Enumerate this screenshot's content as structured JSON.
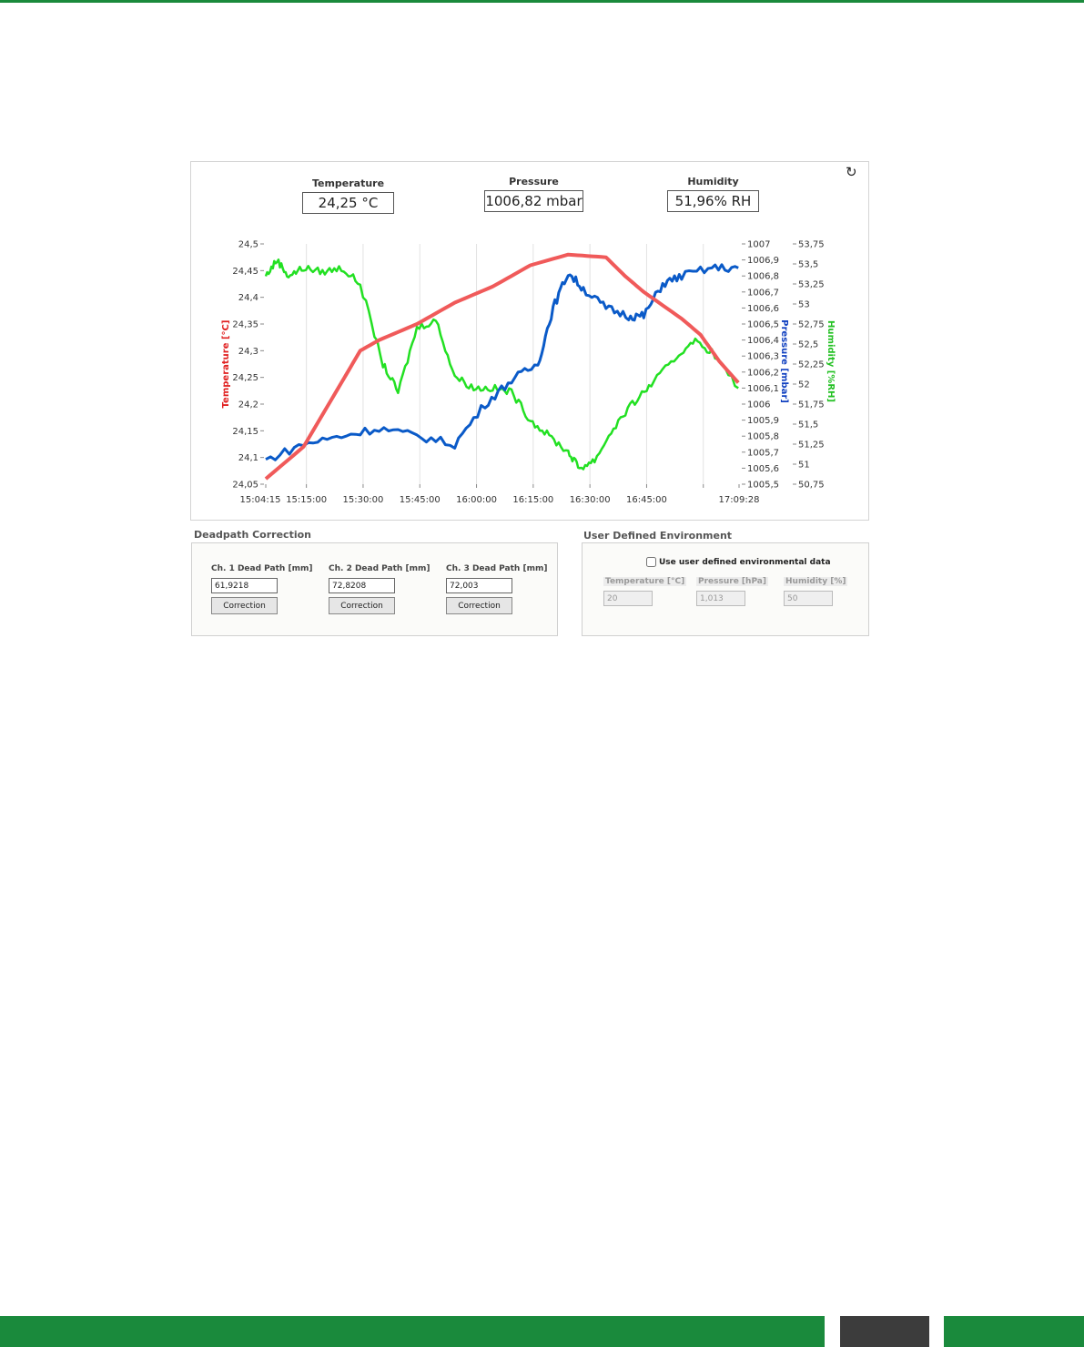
{
  "readouts": {
    "temperature": {
      "label": "Temperature",
      "value": "24,25 °C"
    },
    "pressure": {
      "label": "Pressure",
      "value": "1006,82 mbar"
    },
    "humidity": {
      "label": "Humidity",
      "value": "51,96% RH"
    }
  },
  "reset_icon": "reset-icon",
  "chart_data": {
    "type": "line",
    "x_axis": {
      "ticks": [
        "15:04:15",
        "15:15:00",
        "15:30:00",
        "15:45:00",
        "16:00:00",
        "16:15:00",
        "16:30:00",
        "16:45:00",
        "17:09:28"
      ]
    },
    "y_left": {
      "label": "Temperature [°C]",
      "range": [
        24.05,
        24.5
      ],
      "ticks": [
        "24,5",
        "24,45",
        "24,4",
        "24,35",
        "24,3",
        "24,25",
        "24,2",
        "24,15",
        "24,1",
        "24,05"
      ],
      "color": "#f05a5a"
    },
    "y_right1": {
      "label": "Pressure [mbar]",
      "range": [
        1005.5,
        1007
      ],
      "ticks": [
        "1007",
        "1006,9",
        "1006,8",
        "1006,7",
        "1006,6",
        "1006,5",
        "1006,4",
        "1006,3",
        "1006,2",
        "1006,1",
        "1006",
        "1005,9",
        "1005,8",
        "1005,7",
        "1005,6",
        "1005,5"
      ],
      "color": "#0a5ac8"
    },
    "y_right2": {
      "label": "Humidity [%RH]",
      "range": [
        50.75,
        53.75
      ],
      "ticks": [
        "53,75",
        "53,5",
        "53,25",
        "53",
        "52,75",
        "52,5",
        "52,25",
        "52",
        "51,75",
        "51,5",
        "51,25",
        "51",
        "50,75"
      ],
      "color": "#22e022"
    },
    "grid": "vertical",
    "time_range_min": [
      0,
      125.2
    ],
    "series": [
      {
        "name": "Temperature [°C]",
        "color": "#f05a5a",
        "points": [
          [
            0,
            24.06
          ],
          [
            10,
            24.12
          ],
          [
            20,
            24.24
          ],
          [
            25,
            24.3
          ],
          [
            30,
            24.32
          ],
          [
            40,
            24.35
          ],
          [
            50,
            24.39
          ],
          [
            60,
            24.42
          ],
          [
            70,
            24.46
          ],
          [
            80,
            24.48
          ],
          [
            90,
            24.475
          ],
          [
            95,
            24.44
          ],
          [
            100,
            24.41
          ],
          [
            110,
            24.36
          ],
          [
            115,
            24.33
          ],
          [
            120,
            24.28
          ],
          [
            125,
            24.24
          ]
        ]
      },
      {
        "name": "Pressure [mbar]",
        "color": "#0a5ac8",
        "points": [
          [
            0,
            1005.65
          ],
          [
            10,
            1005.75
          ],
          [
            20,
            1005.8
          ],
          [
            30,
            1005.85
          ],
          [
            40,
            1005.8
          ],
          [
            50,
            1005.75
          ],
          [
            58,
            1006.0
          ],
          [
            65,
            1006.15
          ],
          [
            72,
            1006.25
          ],
          [
            76,
            1006.6
          ],
          [
            80,
            1006.82
          ],
          [
            84,
            1006.72
          ],
          [
            90,
            1006.6
          ],
          [
            96,
            1006.55
          ],
          [
            100,
            1006.55
          ],
          [
            105,
            1006.75
          ],
          [
            110,
            1006.8
          ],
          [
            118,
            1006.85
          ],
          [
            125,
            1006.85
          ]
        ]
      },
      {
        "name": "Humidity [%RH]",
        "color": "#22e022",
        "points": [
          [
            0,
            53.35
          ],
          [
            3,
            53.55
          ],
          [
            6,
            53.35
          ],
          [
            10,
            53.45
          ],
          [
            15,
            53.4
          ],
          [
            20,
            53.45
          ],
          [
            25,
            53.25
          ],
          [
            31,
            52.25
          ],
          [
            35,
            51.9
          ],
          [
            40,
            52.7
          ],
          [
            45,
            52.8
          ],
          [
            50,
            52.1
          ],
          [
            55,
            51.95
          ],
          [
            60,
            51.95
          ],
          [
            65,
            51.9
          ],
          [
            70,
            51.55
          ],
          [
            75,
            51.35
          ],
          [
            80,
            51.15
          ],
          [
            83,
            50.95
          ],
          [
            87,
            51.05
          ],
          [
            92,
            51.45
          ],
          [
            97,
            51.75
          ],
          [
            102,
            52.0
          ],
          [
            108,
            52.3
          ],
          [
            113,
            52.55
          ],
          [
            118,
            52.4
          ],
          [
            125,
            51.95
          ]
        ]
      }
    ]
  },
  "deadpath": {
    "title": "Deadpath Correction",
    "channels": [
      {
        "label": "Ch. 1 Dead Path [mm]",
        "value": "61,9218",
        "button": "Correction"
      },
      {
        "label": "Ch. 2 Dead Path [mm]",
        "value": "72,8208",
        "button": "Correction"
      },
      {
        "label": "Ch. 3 Dead Path [mm]",
        "value": "72,003",
        "button": "Correction"
      }
    ]
  },
  "user_env": {
    "title": "User Defined Environment",
    "checkbox_label": "Use user defined environmental data",
    "fields": [
      {
        "label": "Temperature [°C]",
        "value": "20"
      },
      {
        "label": "Pressure [hPa]",
        "value": "1,013"
      },
      {
        "label": "Humidity [%]",
        "value": "50"
      }
    ]
  }
}
